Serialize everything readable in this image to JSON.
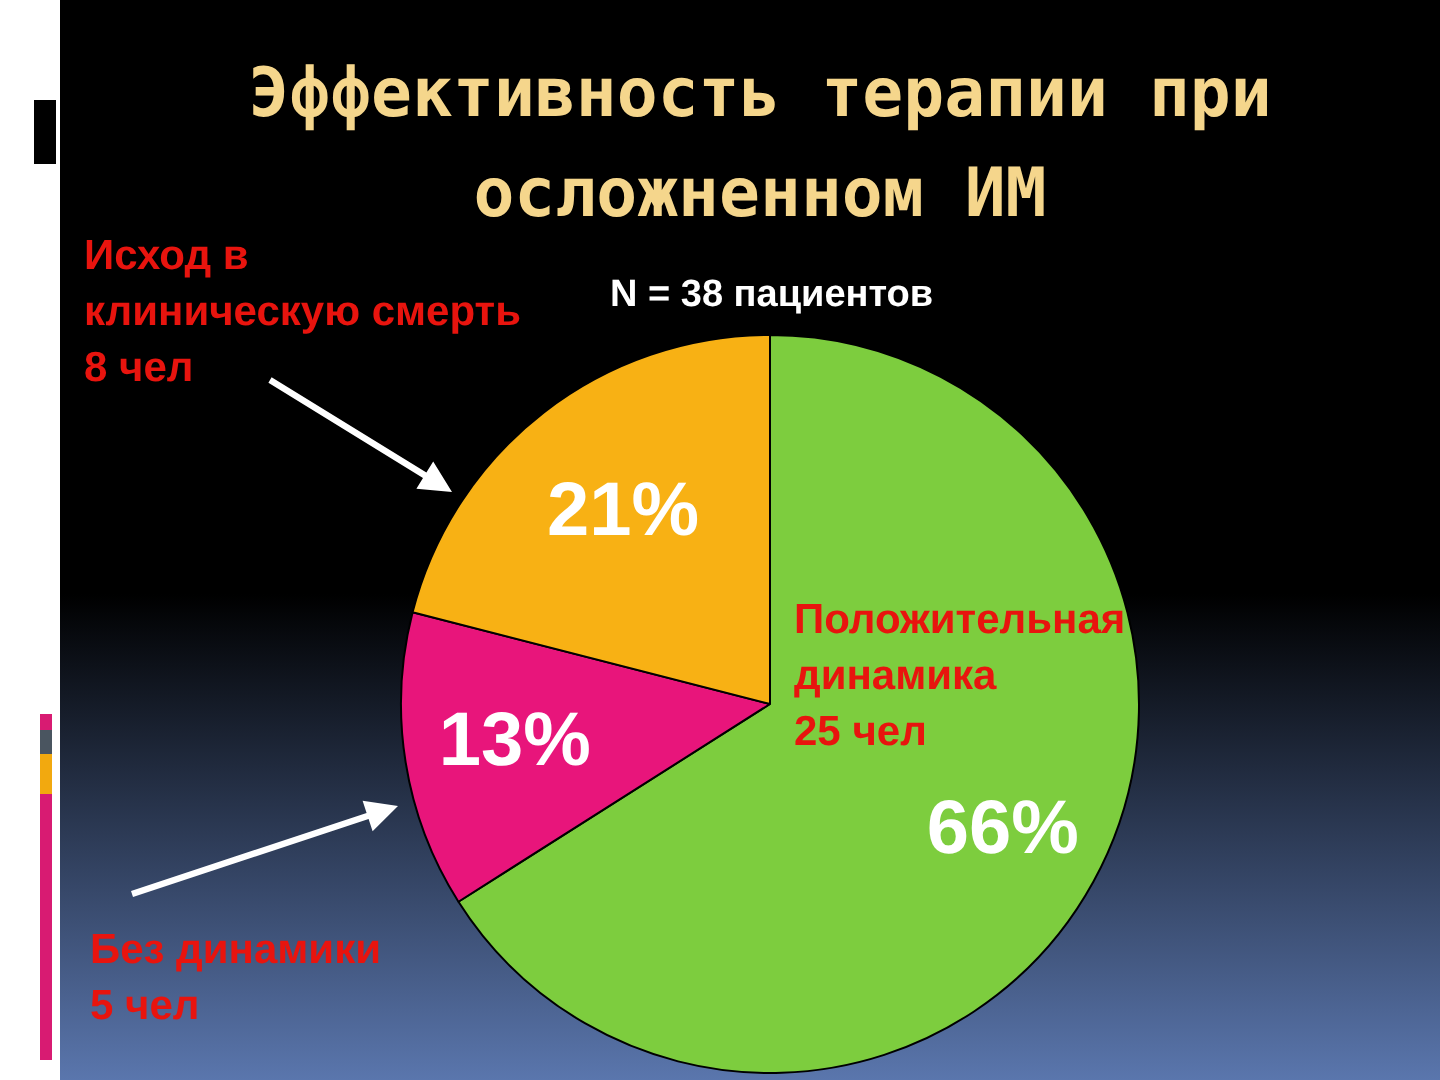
{
  "chart_data": {
    "type": "pie",
    "title": "Эффективность терапии при осложненном ИМ",
    "categories": [
      "Положительная\nдинамика\n25 чел",
      "Без динамики\n5 чел",
      "Исход в\nклиническую смерть\n8 чел"
    ],
    "values": [
      66,
      13,
      21
    ],
    "colors": [
      "#7dcd3e",
      "#e8157b",
      "#f8b114"
    ],
    "value_labels": [
      "66%",
      "13%",
      "21%"
    ],
    "annotations": [
      "N = 38 пациентов"
    ]
  }
}
